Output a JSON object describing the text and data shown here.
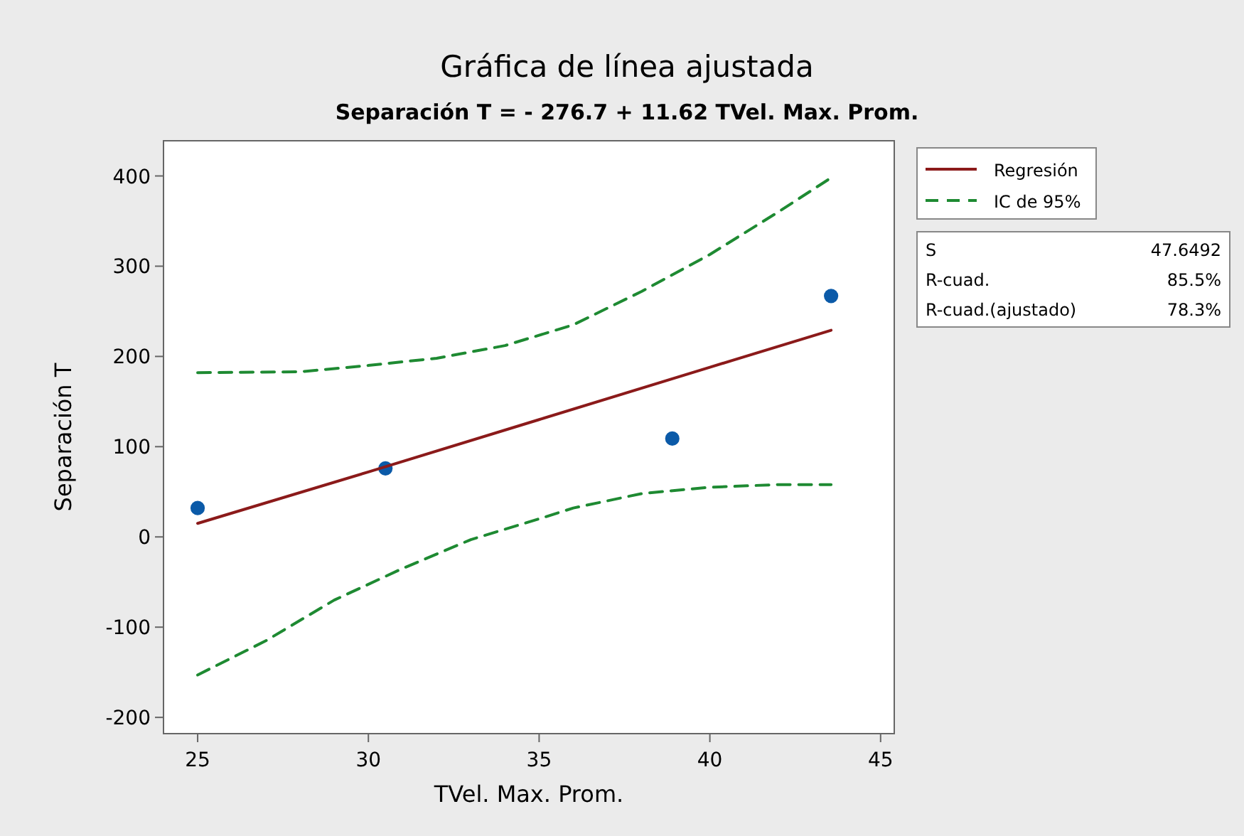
{
  "chart_data": {
    "type": "scatter",
    "title": "Gráfica de línea ajustada",
    "subtitle": "Separación T = - 276.7 + 11.62 TVel. Max. Prom.",
    "xlabel": "TVel. Max. Prom.",
    "ylabel": "Separación T",
    "xlim": [
      24,
      45.4
    ],
    "ylim": [
      -218,
      439
    ],
    "xticks": [
      25,
      30,
      35,
      40,
      45
    ],
    "yticks": [
      -200,
      -100,
      0,
      100,
      200,
      300,
      400
    ],
    "grid": false,
    "legend": "top right",
    "series": [
      {
        "type": "scatter",
        "color": "#0b5aa8",
        "marker": "circle",
        "x": [
          25.0,
          30.5,
          38.9,
          43.55
        ],
        "values": [
          32,
          76,
          109,
          267
        ]
      },
      {
        "type": "line",
        "name": "Regresión",
        "color": "#8b1a1a",
        "line_style": "solid",
        "x": [
          25.0,
          30,
          35,
          40,
          43.55
        ],
        "values": [
          15,
          72,
          130,
          188,
          229
        ]
      },
      {
        "type": "line",
        "name": "IC de 95%",
        "color": "#1e8a32",
        "line_style": "dashed",
        "x": [
          25.0,
          28,
          30,
          32,
          34,
          36,
          38,
          40,
          42,
          43.55
        ],
        "values": [
          182,
          183,
          190,
          198,
          212,
          235,
          272,
          313,
          360,
          398
        ]
      },
      {
        "type": "line",
        "color": "#1e8a32",
        "line_style": "dashed",
        "x": [
          25.0,
          27,
          29,
          31,
          33,
          35,
          36,
          38,
          40,
          42,
          43.55
        ],
        "values": [
          -153,
          -115,
          -70,
          -35,
          -3,
          20,
          32,
          48,
          55,
          58,
          58
        ]
      }
    ],
    "annotations": [
      "S 47.6492",
      "R-cuad. 85.5%",
      "R-cuad.(ajustado) 78.3%"
    ]
  }
}
